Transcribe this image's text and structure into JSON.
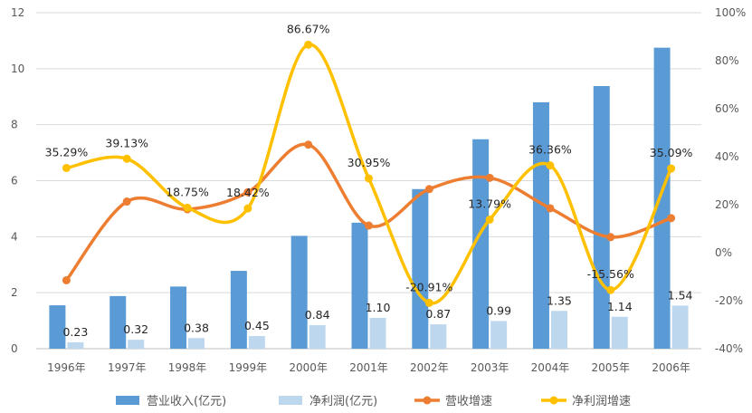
{
  "chart_data": {
    "type": "bar+line",
    "categories": [
      "1996年",
      "1997年",
      "1998年",
      "1999年",
      "2000年",
      "2001年",
      "2002年",
      "2003年",
      "2004年",
      "2005年",
      "2006年"
    ],
    "series": [
      {
        "name": "营业收入(亿元)",
        "type": "bar",
        "axis": "left",
        "color": "#5b9bd5",
        "values": [
          1.55,
          1.88,
          2.22,
          2.78,
          4.03,
          4.5,
          5.7,
          7.48,
          8.8,
          9.38,
          10.75
        ]
      },
      {
        "name": "净利润(亿元)",
        "type": "bar",
        "axis": "left",
        "color": "#bdd7ee",
        "values": [
          0.23,
          0.32,
          0.38,
          0.45,
          0.84,
          1.1,
          0.87,
          0.99,
          1.35,
          1.14,
          1.54
        ],
        "labels": [
          "0.23",
          "0.32",
          "0.38",
          "0.45",
          "0.84",
          "1.10",
          "0.87",
          "0.99",
          "1.35",
          "1.14",
          "1.54"
        ]
      },
      {
        "name": "营收增速",
        "type": "line",
        "axis": "right",
        "color": "#ed7d31",
        "values": [
          -11.5,
          21.3,
          18.1,
          25.2,
          45.0,
          11.3,
          26.5,
          31.2,
          18.5,
          6.5,
          14.4
        ]
      },
      {
        "name": "净利润增速",
        "type": "line",
        "axis": "right",
        "color": "#ffc000",
        "values": [
          35.29,
          39.13,
          18.75,
          18.42,
          86.67,
          30.95,
          -20.91,
          13.79,
          36.36,
          -15.56,
          35.09
        ],
        "labels": [
          "35.29%",
          "39.13%",
          "18.75%",
          "18.42%",
          "86.67%",
          "30.95%",
          "-20.91%",
          "13.79%",
          "36.36%",
          "-15.56%",
          "35.09%"
        ]
      }
    ],
    "y_left": {
      "min": 0,
      "max": 12,
      "ticks": [
        "0",
        "2",
        "4",
        "6",
        "8",
        "10",
        "12"
      ]
    },
    "y_right": {
      "min": -40,
      "max": 100,
      "ticks": [
        "-40%",
        "-20%",
        "0%",
        "20%",
        "40%",
        "60%",
        "80%",
        "100%"
      ]
    },
    "legend": "bottom",
    "grid": true
  }
}
